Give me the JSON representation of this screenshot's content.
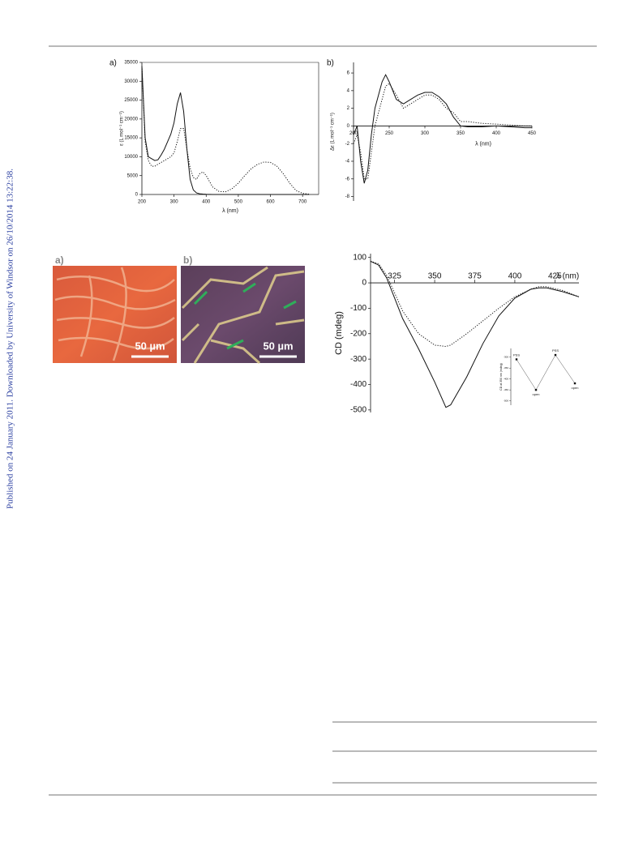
{
  "side_note": "Published on 24 January 2011. Downloaded by University of Windsor on 26/10/2014 13:22:38.",
  "chart_data": [
    {
      "type": "line",
      "panel_label": "a)",
      "x_label": "λ (nm)",
      "y_label": "ε (L mol⁻¹ cm⁻¹)",
      "x": [
        200,
        210,
        220,
        230,
        240,
        250,
        260,
        270,
        280,
        290,
        300,
        310,
        320,
        330,
        340,
        350,
        360,
        370,
        380,
        390,
        400,
        420,
        440,
        460,
        480,
        500,
        520,
        540,
        560,
        580,
        600,
        620,
        640,
        660,
        680,
        700,
        720
      ],
      "series": [
        {
          "style": "solid",
          "color": "#111111",
          "values": [
            34000,
            15000,
            10000,
            9500,
            9000,
            9200,
            10500,
            12000,
            14000,
            16000,
            19000,
            24000,
            27000,
            22000,
            12000,
            4000,
            1200,
            400,
            200,
            100,
            50,
            0,
            0,
            0,
            0,
            0,
            0,
            0,
            0,
            0,
            0,
            0,
            0,
            0,
            0,
            0,
            0
          ]
        },
        {
          "style": "dotted",
          "color": "#111111",
          "values": [
            34000,
            14000,
            9000,
            7500,
            7500,
            8000,
            8500,
            9000,
            9500,
            10000,
            11000,
            14000,
            17500,
            17500,
            12000,
            7000,
            4500,
            4000,
            5500,
            6000,
            5000,
            2000,
            800,
            700,
            1500,
            3000,
            5000,
            6800,
            8000,
            8600,
            8500,
            7500,
            5500,
            3000,
            1000,
            300,
            100
          ]
        }
      ],
      "xlim": [
        200,
        750
      ],
      "xticks": [
        200,
        300,
        400,
        500,
        600,
        700
      ],
      "ylim": [
        0,
        35000
      ],
      "yticks": [
        0,
        5000,
        10000,
        15000,
        20000,
        25000,
        30000,
        35000
      ]
    },
    {
      "type": "line",
      "panel_label": "b)",
      "x_label": "λ (nm)",
      "y_label": "Δε (L mol⁻¹ cm⁻¹)",
      "x": [
        200,
        205,
        210,
        215,
        220,
        225,
        230,
        240,
        245,
        250,
        260,
        270,
        280,
        290,
        300,
        310,
        320,
        330,
        340,
        350,
        360,
        380,
        400,
        420,
        440,
        450
      ],
      "series": [
        {
          "style": "solid",
          "color": "#111111",
          "values": [
            -1,
            0,
            -4,
            -6.5,
            -5,
            -1,
            2,
            5,
            5.8,
            5,
            3,
            2.5,
            3,
            3.5,
            3.8,
            3.8,
            3.3,
            2.5,
            1,
            0,
            -0.1,
            -0.1,
            0,
            -0.1,
            -0.2,
            -0.2
          ]
        },
        {
          "style": "dotted",
          "color": "#111111",
          "values": [
            -2,
            -1,
            -3,
            -6,
            -6,
            -3,
            0,
            3,
            4.5,
            4.8,
            3.5,
            2,
            2.5,
            3,
            3.5,
            3.5,
            3,
            2,
            1.5,
            0.5,
            0.5,
            0.3,
            0.2,
            0.1,
            0,
            0
          ]
        }
      ],
      "xlim": [
        200,
        450
      ],
      "xticks": [
        200,
        250,
        300,
        350,
        400,
        450
      ],
      "ylim": [
        -8.5,
        7.2
      ],
      "yticks": [
        -8,
        -6,
        -4,
        -2,
        0,
        2,
        4,
        6
      ]
    },
    {
      "type": "line",
      "x_label": "λ (nm)",
      "y_label": "CD (mdeg)",
      "x": [
        310,
        315,
        320,
        325,
        330,
        340,
        350,
        357,
        360,
        370,
        380,
        390,
        400,
        410,
        415,
        420,
        430,
        440
      ],
      "series": [
        {
          "style": "solid",
          "color": "#111111",
          "values": [
            85,
            70,
            20,
            -60,
            -140,
            -260,
            -390,
            -490,
            -480,
            -370,
            -240,
            -130,
            -60,
            -25,
            -20,
            -20,
            -35,
            -55
          ]
        },
        {
          "style": "dotted",
          "color": "#111111",
          "values": [
            85,
            75,
            30,
            -40,
            -110,
            -200,
            -245,
            -250,
            -245,
            -200,
            -150,
            -100,
            -55,
            -25,
            -15,
            -15,
            -30,
            -55
          ]
        }
      ],
      "xlim": [
        310,
        440
      ],
      "xticks": [
        325,
        350,
        375,
        400,
        425
      ],
      "ylim": [
        -510,
        115
      ],
      "yticks": [
        -500,
        -400,
        -300,
        -200,
        -100,
        0,
        100
      ]
    },
    {
      "type": "inset-line",
      "y_label": "CD at 350 nm (mdeg)",
      "categories": [
        "PSS",
        "open",
        "PSS",
        "open"
      ],
      "values": [
        -310,
        -450,
        -290,
        -420
      ],
      "ylim": [
        -520,
        -260
      ],
      "yticks": [
        -300,
        -350,
        -400,
        -450,
        -500
      ]
    }
  ],
  "micrographs": [
    {
      "label": "a)",
      "scale": "50 µm"
    },
    {
      "label": "b)",
      "scale": "50 µm"
    }
  ]
}
